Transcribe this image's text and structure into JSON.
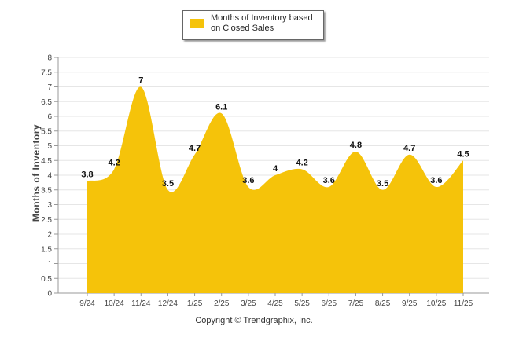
{
  "legend": {
    "label": "Months of Inventory based on Closed Sales",
    "color": "#f5c30a"
  },
  "copyright": "Copyright © Trendgraphix, Inc.",
  "chart_data": {
    "type": "area",
    "title": "",
    "xlabel": "",
    "ylabel": "Months of Inventory",
    "ylim": [
      0,
      8
    ],
    "yticks": [
      "0",
      "0.5",
      "1",
      "1.5",
      "2",
      "2.5",
      "3",
      "3.5",
      "4",
      "4.5",
      "5",
      "5.5",
      "6",
      "6.5",
      "7",
      "7.5",
      "8"
    ],
    "grid": true,
    "legend_position": "top",
    "categories": [
      "9/24",
      "10/24",
      "11/24",
      "12/24",
      "1/25",
      "2/25",
      "3/25",
      "4/25",
      "5/25",
      "6/25",
      "7/25",
      "8/25",
      "9/25",
      "10/25",
      "11/25"
    ],
    "series": [
      {
        "name": "Months of Inventory based on Closed Sales",
        "color": "#f5c30a",
        "values": [
          3.8,
          4.2,
          7,
          3.5,
          4.7,
          6.1,
          3.6,
          4,
          4.2,
          3.6,
          4.8,
          3.5,
          4.7,
          3.6,
          4.5
        ],
        "labels": [
          "3.8",
          "4.2",
          "7",
          "3.5",
          "4.7",
          "6.1",
          "3.6",
          "4",
          "4.2",
          "3.6",
          "4.8",
          "3.5",
          "4.7",
          "3.6",
          "4.5"
        ]
      }
    ]
  }
}
